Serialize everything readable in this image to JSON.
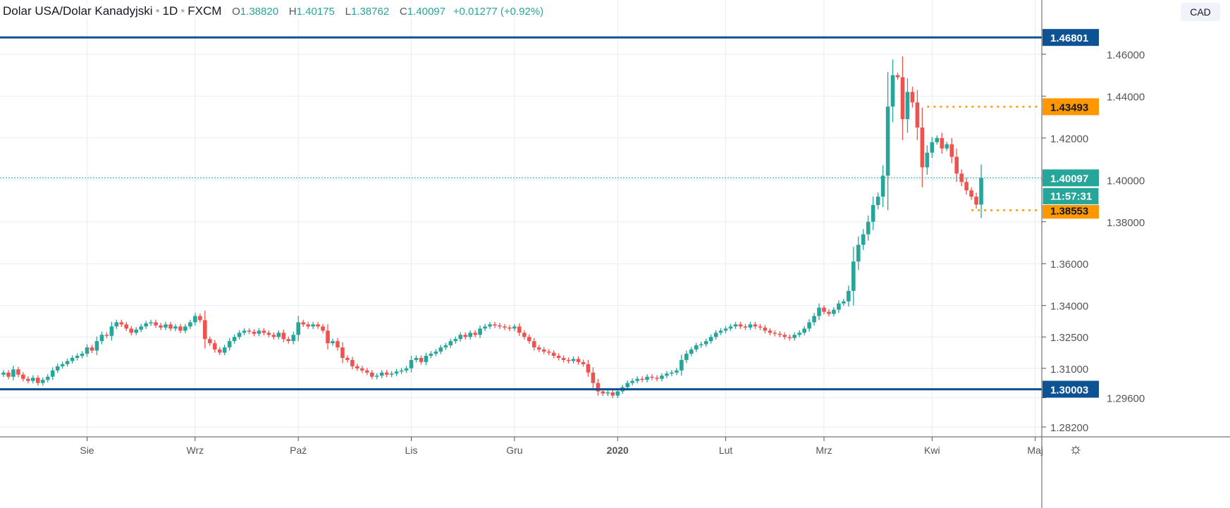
{
  "header": {
    "symbol": "Dolar USA/Dolar Kanadyjski",
    "interval": "1D",
    "exchange": "FXCM",
    "open_label": "O",
    "open": "1.38820",
    "high_label": "H",
    "high": "1.40175",
    "low_label": "L",
    "low": "1.38762",
    "close_label": "C",
    "close": "1.40097",
    "change": "+0.01277 (+0.92%)"
  },
  "currency_button": "CAD",
  "countdown": "11:57:31",
  "colors": {
    "up": "#26a69a",
    "down": "#ef5350",
    "level": "#0d5394",
    "orange": "#ff9800",
    "grid": "#e6edf3"
  },
  "chart_data": {
    "type": "candlestick",
    "title": "Dolar USA/Dolar Kanadyjski 1D FXCM",
    "ylim": [
      1.2773,
      1.4859
    ],
    "y_ticks": [
      "1.28200",
      "1.29600",
      "1.31000",
      "1.32500",
      "1.34000",
      "1.36000",
      "1.38000",
      "1.40000",
      "1.42000",
      "1.44000",
      "1.46000"
    ],
    "x_ticks": [
      {
        "label": "Sie",
        "index": 17
      },
      {
        "label": "Wrz",
        "index": 39
      },
      {
        "label": "Paź",
        "index": 60
      },
      {
        "label": "Lis",
        "index": 83
      },
      {
        "label": "Gru",
        "index": 104
      },
      {
        "label": "2020",
        "index": 125
      },
      {
        "label": "Lut",
        "index": 147
      },
      {
        "label": "Mrz",
        "index": 167
      },
      {
        "label": "Kwi",
        "index": 189
      },
      {
        "label": "Maj",
        "index": 210
      }
    ],
    "first_open": 1.307,
    "closes": [
      1.308,
      1.306,
      1.3095,
      1.307,
      1.305,
      1.304,
      1.3055,
      1.303,
      1.3045,
      1.306,
      1.309,
      1.311,
      1.312,
      1.3135,
      1.315,
      1.316,
      1.317,
      1.32,
      1.3185,
      1.323,
      1.326,
      1.3255,
      1.33,
      1.332,
      1.331,
      1.329,
      1.327,
      1.3285,
      1.33,
      1.3315,
      1.332,
      1.3305,
      1.3295,
      1.331,
      1.329,
      1.33,
      1.328,
      1.33,
      1.332,
      1.335,
      1.333,
      1.324,
      1.322,
      1.319,
      1.3175,
      1.32,
      1.323,
      1.325,
      1.327,
      1.328,
      1.3275,
      1.3265,
      1.328,
      1.327,
      1.326,
      1.325,
      1.327,
      1.324,
      1.323,
      1.326,
      1.332,
      1.331,
      1.33,
      1.331,
      1.33,
      1.328,
      1.322,
      1.323,
      1.32,
      1.315,
      1.314,
      1.311,
      1.31,
      1.309,
      1.308,
      1.306,
      1.3065,
      1.308,
      1.307,
      1.3075,
      1.3085,
      1.309,
      1.31,
      1.314,
      1.315,
      1.313,
      1.316,
      1.317,
      1.318,
      1.32,
      1.321,
      1.323,
      1.324,
      1.326,
      1.325,
      1.327,
      1.326,
      1.329,
      1.33,
      1.331,
      1.3305,
      1.33,
      1.3295,
      1.329,
      1.33,
      1.327,
      1.325,
      1.323,
      1.32,
      1.319,
      1.318,
      1.3175,
      1.316,
      1.315,
      1.314,
      1.3135,
      1.3145,
      1.313,
      1.312,
      1.308,
      1.303,
      1.299,
      1.298,
      1.2985,
      1.297,
      1.299,
      1.301,
      1.303,
      1.304,
      1.305,
      1.3045,
      1.306,
      1.3055,
      1.305,
      1.3065,
      1.3075,
      1.308,
      1.309,
      1.314,
      1.317,
      1.319,
      1.321,
      1.3215,
      1.323,
      1.325,
      1.327,
      1.328,
      1.329,
      1.33,
      1.331,
      1.33,
      1.3295,
      1.331,
      1.33,
      1.3295,
      1.328,
      1.327,
      1.3265,
      1.326,
      1.325,
      1.3245,
      1.326,
      1.327,
      1.329,
      1.332,
      1.335,
      1.339,
      1.337,
      1.336,
      1.338,
      1.341,
      1.342,
      1.347,
      1.361,
      1.369,
      1.374,
      1.38,
      1.388,
      1.392,
      1.402,
      1.435,
      1.45,
      1.449,
      1.429,
      1.442,
      1.437,
      1.425,
      1.406,
      1.413,
      1.418,
      1.42,
      1.415,
      1.417,
      1.411,
      1.403,
      1.399,
      1.395,
      1.392,
      1.3882,
      1.40097
    ],
    "levels": [
      {
        "label": "1.46801",
        "value": 1.46801,
        "style": "solid",
        "color": "#0d5394"
      },
      {
        "label": "1.30003",
        "value": 1.30003,
        "style": "solid",
        "color": "#0d5394"
      },
      {
        "label": "1.43493",
        "value": 1.43493,
        "style": "dotted",
        "color": "#ff9800",
        "from_index": 188
      },
      {
        "label": "1.38553",
        "value": 1.38553,
        "style": "dotted",
        "color": "#ff9800",
        "from_index": 197
      },
      {
        "label": "1.40097",
        "value": 1.40097,
        "style": "last-price",
        "color": "#26a69a"
      }
    ]
  }
}
